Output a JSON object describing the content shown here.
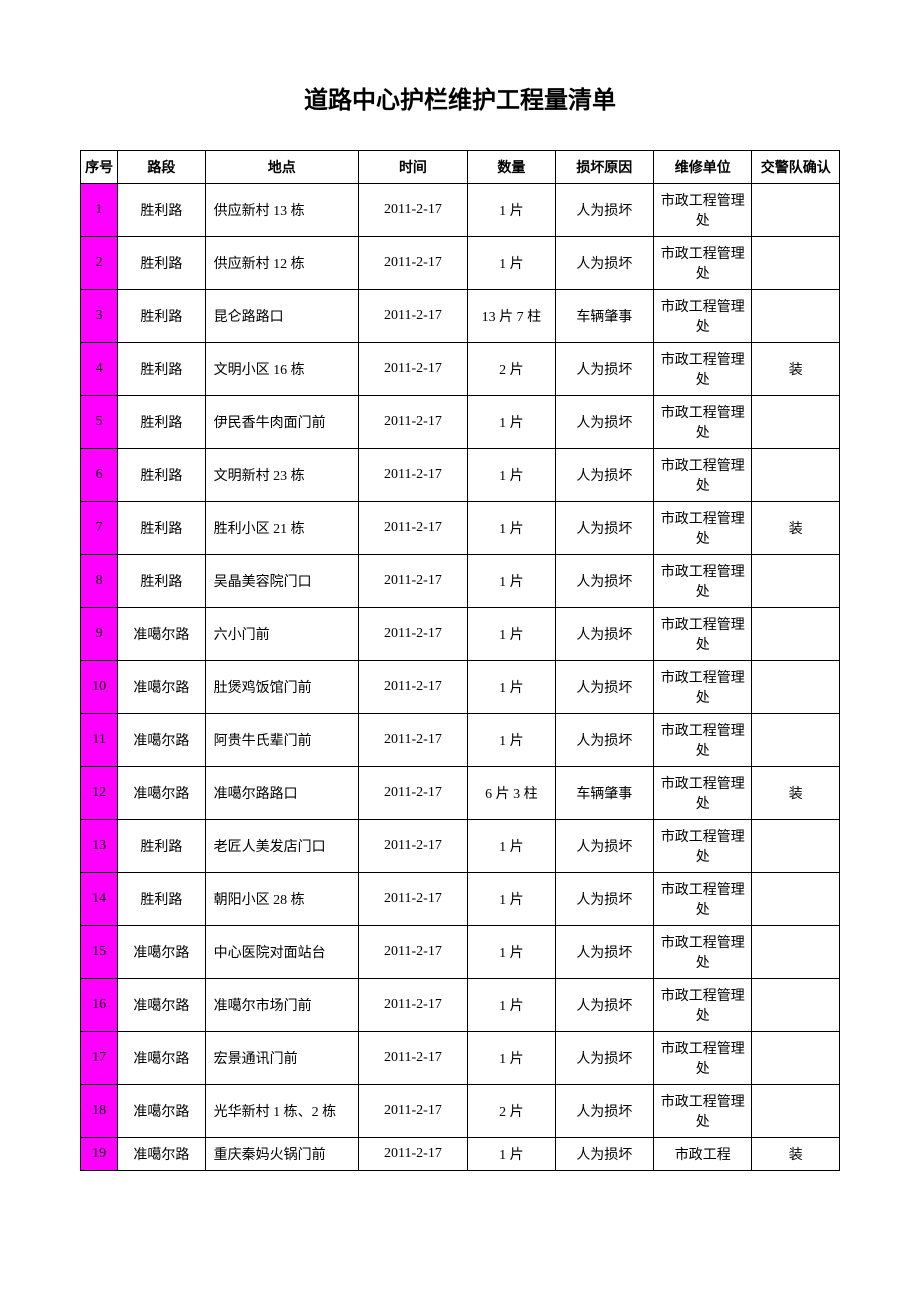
{
  "title": "道路中心护栏维护工程量清单",
  "headers": {
    "seq": "序号",
    "road": "路段",
    "location": "地点",
    "time": "时间",
    "quantity": "数量",
    "reason": "损坏原因",
    "unit": "维修单位",
    "confirm": "交警队确认"
  },
  "seq_bg_color": "#ff00ff",
  "rows": [
    {
      "seq": "1",
      "road": "胜利路",
      "location": "供应新村 13 栋",
      "time": "2011-2-17",
      "quantity": "1 片",
      "reason": "人为损坏",
      "unit": "市政工程管理处",
      "confirm": ""
    },
    {
      "seq": "2",
      "road": "胜利路",
      "location": "供应新村 12 栋",
      "time": "2011-2-17",
      "quantity": "1 片",
      "reason": "人为损坏",
      "unit": "市政工程管理处",
      "confirm": ""
    },
    {
      "seq": "3",
      "road": "胜利路",
      "location": "昆仑路路口",
      "time": "2011-2-17",
      "quantity": "13 片 7 柱",
      "reason": "车辆肇事",
      "unit": "市政工程管理处",
      "confirm": ""
    },
    {
      "seq": "4",
      "road": "胜利路",
      "location": "文明小区 16 栋",
      "time": "2011-2-17",
      "quantity": "2 片",
      "reason": "人为损坏",
      "unit": "市政工程管理处",
      "confirm": "装"
    },
    {
      "seq": "5",
      "road": "胜利路",
      "location": "伊民香牛肉面门前",
      "time": "2011-2-17",
      "quantity": "1 片",
      "reason": "人为损坏",
      "unit": "市政工程管理处",
      "confirm": ""
    },
    {
      "seq": "6",
      "road": "胜利路",
      "location": "文明新村 23 栋",
      "time": "2011-2-17",
      "quantity": "1 片",
      "reason": "人为损坏",
      "unit": "市政工程管理处",
      "confirm": ""
    },
    {
      "seq": "7",
      "road": "胜利路",
      "location": "胜利小区 21 栋",
      "time": "2011-2-17",
      "quantity": "1 片",
      "reason": "人为损坏",
      "unit": "市政工程管理处",
      "confirm": "装"
    },
    {
      "seq": "8",
      "road": "胜利路",
      "location": "吴晶美容院门口",
      "time": "2011-2-17",
      "quantity": "1 片",
      "reason": "人为损坏",
      "unit": "市政工程管理处",
      "confirm": ""
    },
    {
      "seq": "9",
      "road": "准噶尔路",
      "location": "六小门前",
      "time": "2011-2-17",
      "quantity": "1 片",
      "reason": "人为损坏",
      "unit": "市政工程管理处",
      "confirm": ""
    },
    {
      "seq": "10",
      "road": "准噶尔路",
      "location": "肚煲鸡饭馆门前",
      "time": "2011-2-17",
      "quantity": "1 片",
      "reason": "人为损坏",
      "unit": "市政工程管理处",
      "confirm": ""
    },
    {
      "seq": "11",
      "road": "准噶尔路",
      "location": "阿贵牛氏辈门前",
      "time": "2011-2-17",
      "quantity": "1 片",
      "reason": "人为损坏",
      "unit": "市政工程管理处",
      "confirm": ""
    },
    {
      "seq": "12",
      "road": "准噶尔路",
      "location": "准噶尔路路口",
      "time": "2011-2-17",
      "quantity": "6 片 3 柱",
      "reason": "车辆肇事",
      "unit": "市政工程管理处",
      "confirm": "装"
    },
    {
      "seq": "13",
      "road": "胜利路",
      "location": "老匠人美发店门口",
      "time": "2011-2-17",
      "quantity": "1 片",
      "reason": "人为损坏",
      "unit": "市政工程管理处",
      "confirm": ""
    },
    {
      "seq": "14",
      "road": "胜利路",
      "location": "朝阳小区 28 栋",
      "time": "2011-2-17",
      "quantity": "1 片",
      "reason": "人为损坏",
      "unit": "市政工程管理处",
      "confirm": ""
    },
    {
      "seq": "15",
      "road": "准噶尔路",
      "location": "中心医院对面站台",
      "time": "2011-2-17",
      "quantity": "1 片",
      "reason": "人为损坏",
      "unit": "市政工程管理处",
      "confirm": ""
    },
    {
      "seq": "16",
      "road": "准噶尔路",
      "location": "准噶尔市场门前",
      "time": "2011-2-17",
      "quantity": "1 片",
      "reason": "人为损坏",
      "unit": "市政工程管理处",
      "confirm": ""
    },
    {
      "seq": "17",
      "road": "准噶尔路",
      "location": "宏景通讯门前",
      "time": "2011-2-17",
      "quantity": "1 片",
      "reason": "人为损坏",
      "unit": "市政工程管理处",
      "confirm": ""
    },
    {
      "seq": "18",
      "road": "准噶尔路",
      "location": "光华新村 1 栋、2 栋",
      "time": "2011-2-17",
      "quantity": "2 片",
      "reason": "人为损坏",
      "unit": "市政工程管理处",
      "confirm": ""
    },
    {
      "seq": "19",
      "road": "准噶尔路",
      "location": "重庆秦妈火锅门前",
      "time": "2011-2-17",
      "quantity": "1 片",
      "reason": "人为损坏",
      "unit": "市政工程",
      "confirm": "装"
    }
  ]
}
